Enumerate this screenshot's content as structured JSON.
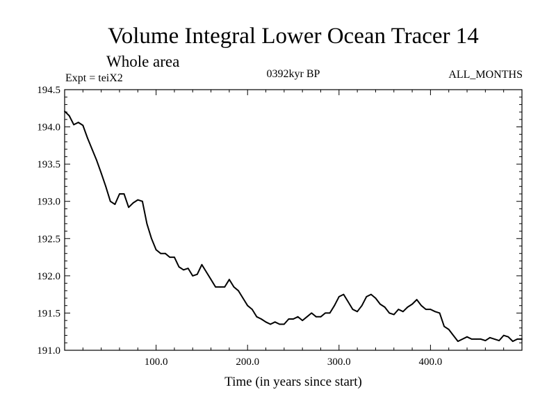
{
  "chart_data": {
    "type": "line",
    "title": "Volume Integral Lower Ocean Tracer 14",
    "subtitle": "Whole area",
    "expt_label": "Expt = teiX2",
    "period_label": "0392kyr BP",
    "months_label": "ALL_MONTHS",
    "xlabel": "Time (in years since start)",
    "ylabel": "",
    "xlim": [
      0,
      500
    ],
    "ylim": [
      191.0,
      194.5
    ],
    "xticks": [
      100,
      200,
      300,
      400
    ],
    "xtick_labels": [
      "100.0",
      "200.0",
      "300.0",
      "400.0"
    ],
    "yticks": [
      191.0,
      191.5,
      192.0,
      192.5,
      193.0,
      193.5,
      194.0,
      194.5
    ],
    "ytick_labels": [
      "191.0",
      "191.5",
      "192.0",
      "192.5",
      "193.0",
      "193.5",
      "194.0",
      "194.5"
    ],
    "grid": false,
    "line_color": "#000000",
    "series": [
      {
        "x": [
          0,
          5,
          10,
          15,
          20,
          25,
          30,
          35,
          40,
          45,
          50,
          55,
          60,
          65,
          70,
          75,
          80,
          85,
          90,
          95,
          100,
          105,
          110,
          115,
          120,
          125,
          130,
          135,
          140,
          145,
          150,
          155,
          160,
          165,
          170,
          175,
          180,
          185,
          190,
          195,
          200,
          205,
          210,
          215,
          220,
          225,
          230,
          235,
          240,
          245,
          250,
          255,
          260,
          265,
          270,
          275,
          280,
          285,
          290,
          295,
          300,
          305,
          310,
          315,
          320,
          325,
          330,
          335,
          340,
          345,
          350,
          355,
          360,
          365,
          370,
          375,
          380,
          385,
          390,
          395,
          400,
          405,
          410,
          415,
          420,
          425,
          430,
          435,
          440,
          445,
          450,
          455,
          460,
          465,
          470,
          475,
          480,
          485,
          490,
          495,
          500
        ],
        "values": [
          194.21,
          194.15,
          194.03,
          194.06,
          194.02,
          193.85,
          193.7,
          193.55,
          193.38,
          193.2,
          193.0,
          192.96,
          193.1,
          193.1,
          192.92,
          192.98,
          193.02,
          193.0,
          192.7,
          192.5,
          192.35,
          192.3,
          192.3,
          192.25,
          192.25,
          192.12,
          192.08,
          192.1,
          192.0,
          192.02,
          192.15,
          192.05,
          191.95,
          191.85,
          191.85,
          191.85,
          191.95,
          191.85,
          191.8,
          191.7,
          191.6,
          191.55,
          191.45,
          191.42,
          191.38,
          191.35,
          191.38,
          191.35,
          191.35,
          191.42,
          191.42,
          191.45,
          191.4,
          191.45,
          191.5,
          191.45,
          191.45,
          191.5,
          191.5,
          191.6,
          191.72,
          191.75,
          191.65,
          191.55,
          191.52,
          191.6,
          191.72,
          191.75,
          191.7,
          191.62,
          191.58,
          191.5,
          191.48,
          191.55,
          191.52,
          191.58,
          191.62,
          191.68,
          191.6,
          191.55,
          191.55,
          191.52,
          191.5,
          191.32,
          191.28,
          191.2,
          191.12,
          191.15,
          191.18,
          191.15,
          191.15,
          191.15,
          191.13,
          191.17,
          191.15,
          191.13,
          191.2,
          191.18,
          191.12,
          191.15,
          191.15
        ]
      }
    ]
  }
}
